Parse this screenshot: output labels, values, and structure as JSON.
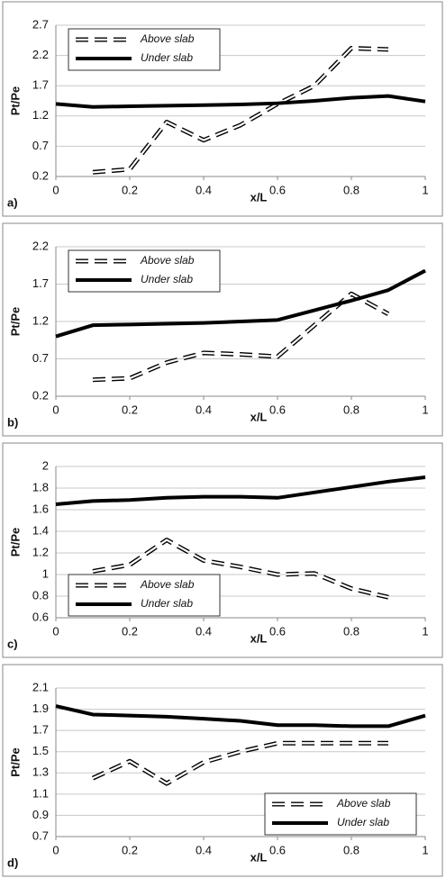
{
  "chart_data": [
    {
      "type": "line",
      "panel_label": "a)",
      "x_label": "x/L",
      "y_label": "Pt/Pe",
      "legend": "upper left",
      "x": [
        0,
        0.1,
        0.2,
        0.3,
        0.4,
        0.5,
        0.6,
        0.7,
        0.8,
        0.9,
        1
      ],
      "xlim": [
        0,
        1
      ],
      "xticks": [
        0,
        0.2,
        0.4,
        0.6,
        0.8,
        1
      ],
      "ylim": [
        0.2,
        2.7
      ],
      "yticks": [
        0.2,
        0.7,
        1.2,
        1.7,
        2.2,
        2.7
      ],
      "grid": true,
      "series": [
        {
          "name": "Above slab",
          "color": "#000000",
          "line_style": "dashed",
          "values": [
            null,
            0.27,
            0.32,
            1.1,
            0.8,
            1.05,
            1.4,
            1.7,
            2.32,
            2.3,
            null
          ]
        },
        {
          "name": "Under slab",
          "color": "#000000",
          "line_style": "solid",
          "values": [
            1.4,
            1.35,
            1.36,
            1.37,
            1.38,
            1.39,
            1.41,
            1.45,
            1.5,
            1.53,
            1.44
          ]
        }
      ]
    },
    {
      "type": "line",
      "panel_label": "b)",
      "x_label": "x/L",
      "y_label": "Pt/Pe",
      "legend": "upper left",
      "x": [
        0,
        0.1,
        0.2,
        0.3,
        0.4,
        0.5,
        0.6,
        0.7,
        0.8,
        0.9,
        1
      ],
      "xlim": [
        0,
        1
      ],
      "xticks": [
        0,
        0.2,
        0.4,
        0.6,
        0.8,
        1
      ],
      "ylim": [
        0.2,
        2.2
      ],
      "yticks": [
        0.2,
        0.7,
        1.2,
        1.7,
        2.2
      ],
      "grid": true,
      "series": [
        {
          "name": "Above slab",
          "color": "#000000",
          "line_style": "dashed",
          "values": [
            null,
            0.42,
            0.44,
            0.65,
            0.78,
            0.76,
            0.73,
            1.15,
            1.57,
            1.3,
            null
          ]
        },
        {
          "name": "Under slab",
          "color": "#000000",
          "line_style": "solid",
          "values": [
            1.0,
            1.15,
            1.16,
            1.17,
            1.18,
            1.2,
            1.22,
            1.35,
            1.48,
            1.62,
            1.88
          ]
        }
      ]
    },
    {
      "type": "line",
      "panel_label": "c)",
      "x_label": "x/L",
      "y_label": "Pt/Pe",
      "legend": "lower left",
      "x": [
        0,
        0.1,
        0.2,
        0.3,
        0.4,
        0.5,
        0.6,
        0.7,
        0.8,
        0.9,
        1
      ],
      "xlim": [
        0,
        1
      ],
      "xticks": [
        0,
        0.2,
        0.4,
        0.6,
        0.8,
        1
      ],
      "ylim": [
        0.6,
        2
      ],
      "yticks": [
        0.6,
        0.8,
        1,
        1.2,
        1.4,
        1.6,
        1.8,
        2
      ],
      "grid": true,
      "series": [
        {
          "name": "Above slab",
          "color": "#000000",
          "line_style": "dashed",
          "values": [
            null,
            1.03,
            1.09,
            1.32,
            1.13,
            1.07,
            1.0,
            1.01,
            0.87,
            0.79,
            null
          ]
        },
        {
          "name": "Under slab",
          "color": "#000000",
          "line_style": "solid",
          "values": [
            1.65,
            1.68,
            1.69,
            1.71,
            1.72,
            1.72,
            1.71,
            1.76,
            1.81,
            1.86,
            1.9
          ]
        }
      ]
    },
    {
      "type": "line",
      "panel_label": "d)",
      "x_label": "x/L",
      "y_label": "Pt/Pe",
      "legend": "lower right",
      "x": [
        0,
        0.1,
        0.2,
        0.3,
        0.4,
        0.5,
        0.6,
        0.7,
        0.8,
        0.9,
        1
      ],
      "xlim": [
        0,
        1
      ],
      "xticks": [
        0,
        0.2,
        0.4,
        0.6,
        0.8,
        1
      ],
      "ylim": [
        0.7,
        2.1
      ],
      "yticks": [
        0.7,
        0.9,
        1.1,
        1.3,
        1.5,
        1.7,
        1.9,
        2.1
      ],
      "grid": true,
      "series": [
        {
          "name": "Above slab",
          "color": "#000000",
          "line_style": "dashed",
          "values": [
            null,
            1.25,
            1.41,
            1.2,
            1.4,
            1.5,
            1.58,
            1.58,
            1.58,
            1.58,
            null
          ]
        },
        {
          "name": "Under slab",
          "color": "#000000",
          "line_style": "solid",
          "values": [
            1.93,
            1.85,
            1.84,
            1.83,
            1.81,
            1.79,
            1.75,
            1.75,
            1.74,
            1.74,
            1.84
          ]
        }
      ]
    }
  ]
}
